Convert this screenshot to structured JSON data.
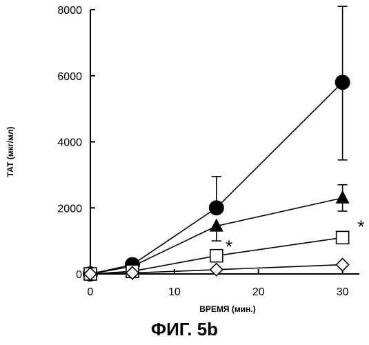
{
  "chart_data": {
    "type": "line",
    "title": "",
    "xlabel": "ВРЕМЯ (мин.)",
    "ylabel": "ТАТ (мкг/мл)",
    "xlim": [
      0,
      32
    ],
    "ylim": [
      0,
      8000
    ],
    "x_ticks": [
      "0",
      "10",
      "20",
      "30"
    ],
    "y_ticks": [
      "0",
      "2000",
      "4000",
      "6000",
      "8000"
    ],
    "grid": false,
    "legend": "none",
    "series": [
      {
        "marker": "filled-circle",
        "color": "#000000",
        "x": [
          0,
          5,
          15,
          30
        ],
        "y": [
          0,
          280,
          2000,
          5800
        ],
        "error_upper": [
          null,
          null,
          2950,
          8100
        ],
        "error_lower": [
          null,
          null,
          null,
          3450
        ]
      },
      {
        "marker": "filled-triangle",
        "color": "#000000",
        "x": [
          0,
          5,
          15,
          30
        ],
        "y": [
          0,
          230,
          1450,
          2300
        ],
        "error_upper": [
          null,
          null,
          null,
          2700
        ],
        "error_lower": [
          null,
          null,
          1000,
          1900
        ]
      },
      {
        "marker": "open-square",
        "color": "#000000",
        "x": [
          0,
          5,
          15,
          30
        ],
        "y": [
          0,
          80,
          550,
          1100
        ],
        "error_upper": [
          null,
          null,
          null,
          null
        ],
        "error_lower": [
          null,
          null,
          null,
          null
        ]
      },
      {
        "marker": "open-diamond",
        "color": "#000000",
        "x": [
          0,
          5,
          15,
          30
        ],
        "y": [
          0,
          30,
          130,
          280
        ],
        "error_upper": [
          null,
          null,
          null,
          null
        ],
        "error_lower": [
          null,
          null,
          null,
          null
        ]
      }
    ],
    "annotations": [
      {
        "text": "*",
        "x": 16.5,
        "y": 850
      },
      {
        "text": "*",
        "x": 32.2,
        "y": 1450
      }
    ]
  },
  "caption": "ФИГ. 5b"
}
